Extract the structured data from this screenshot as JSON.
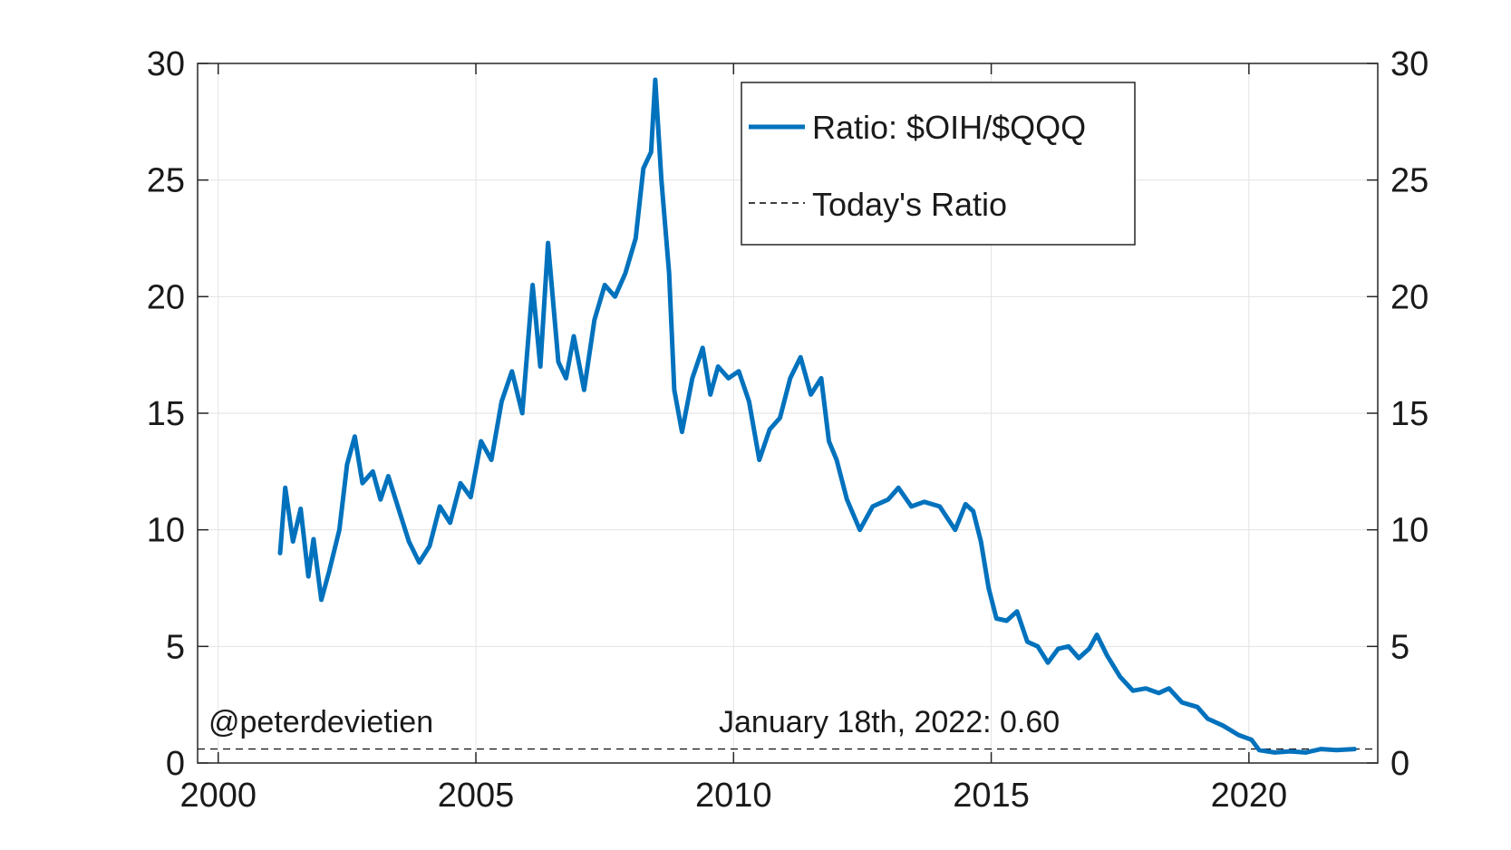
{
  "chart_data": {
    "type": "line",
    "title": "",
    "xlabel": "",
    "ylabel": "",
    "xlim": [
      1999.6,
      2022.5
    ],
    "ylim": [
      0,
      30
    ],
    "grid": true,
    "legend_position": "top-right",
    "x_ticks": [
      2000,
      2005,
      2010,
      2015,
      2020
    ],
    "x_tick_labels": [
      "2000",
      "2005",
      "2010",
      "2015",
      "2020"
    ],
    "y_ticks": [
      0,
      5,
      10,
      15,
      20,
      25,
      30
    ],
    "y_tick_labels": [
      "0",
      "5",
      "10",
      "15",
      "20",
      "25",
      "30"
    ],
    "series": [
      {
        "name": "Ratio: $OIH/$QQQ",
        "color": "#0072BD",
        "points": [
          [
            2001.2,
            9.0
          ],
          [
            2001.3,
            11.8
          ],
          [
            2001.45,
            9.5
          ],
          [
            2001.6,
            10.9
          ],
          [
            2001.75,
            8.0
          ],
          [
            2001.85,
            9.6
          ],
          [
            2002.0,
            7.0
          ],
          [
            2002.15,
            8.2
          ],
          [
            2002.35,
            10.0
          ],
          [
            2002.5,
            12.8
          ],
          [
            2002.65,
            14.0
          ],
          [
            2002.8,
            12.0
          ],
          [
            2003.0,
            12.5
          ],
          [
            2003.15,
            11.3
          ],
          [
            2003.3,
            12.3
          ],
          [
            2003.5,
            10.9
          ],
          [
            2003.7,
            9.5
          ],
          [
            2003.9,
            8.6
          ],
          [
            2004.1,
            9.3
          ],
          [
            2004.3,
            11.0
          ],
          [
            2004.5,
            10.3
          ],
          [
            2004.7,
            12.0
          ],
          [
            2004.9,
            11.4
          ],
          [
            2005.1,
            13.8
          ],
          [
            2005.3,
            13.0
          ],
          [
            2005.5,
            15.5
          ],
          [
            2005.7,
            16.8
          ],
          [
            2005.9,
            15.0
          ],
          [
            2006.1,
            20.5
          ],
          [
            2006.25,
            17.0
          ],
          [
            2006.4,
            22.3
          ],
          [
            2006.6,
            17.2
          ],
          [
            2006.75,
            16.5
          ],
          [
            2006.9,
            18.3
          ],
          [
            2007.1,
            16.0
          ],
          [
            2007.3,
            19.0
          ],
          [
            2007.5,
            20.5
          ],
          [
            2007.7,
            20.0
          ],
          [
            2007.9,
            21.0
          ],
          [
            2008.1,
            22.5
          ],
          [
            2008.25,
            25.5
          ],
          [
            2008.4,
            26.2
          ],
          [
            2008.48,
            29.3
          ],
          [
            2008.6,
            25.0
          ],
          [
            2008.75,
            21.0
          ],
          [
            2008.85,
            16.0
          ],
          [
            2009.0,
            14.2
          ],
          [
            2009.2,
            16.5
          ],
          [
            2009.4,
            17.8
          ],
          [
            2009.55,
            15.8
          ],
          [
            2009.7,
            17.0
          ],
          [
            2009.9,
            16.5
          ],
          [
            2010.1,
            16.8
          ],
          [
            2010.3,
            15.5
          ],
          [
            2010.5,
            13.0
          ],
          [
            2010.7,
            14.3
          ],
          [
            2010.9,
            14.8
          ],
          [
            2011.1,
            16.5
          ],
          [
            2011.3,
            17.4
          ],
          [
            2011.5,
            15.8
          ],
          [
            2011.7,
            16.5
          ],
          [
            2011.85,
            13.8
          ],
          [
            2012.0,
            13.0
          ],
          [
            2012.2,
            11.3
          ],
          [
            2012.45,
            10.0
          ],
          [
            2012.7,
            11.0
          ],
          [
            2013.0,
            11.3
          ],
          [
            2013.2,
            11.8
          ],
          [
            2013.45,
            11.0
          ],
          [
            2013.7,
            11.2
          ],
          [
            2014.0,
            11.0
          ],
          [
            2014.3,
            10.0
          ],
          [
            2014.5,
            11.1
          ],
          [
            2014.65,
            10.8
          ],
          [
            2014.8,
            9.5
          ],
          [
            2014.95,
            7.5
          ],
          [
            2015.1,
            6.2
          ],
          [
            2015.3,
            6.1
          ],
          [
            2015.5,
            6.5
          ],
          [
            2015.7,
            5.2
          ],
          [
            2015.9,
            5.0
          ],
          [
            2016.1,
            4.3
          ],
          [
            2016.3,
            4.9
          ],
          [
            2016.5,
            5.0
          ],
          [
            2016.7,
            4.5
          ],
          [
            2016.9,
            4.9
          ],
          [
            2017.05,
            5.5
          ],
          [
            2017.25,
            4.6
          ],
          [
            2017.5,
            3.7
          ],
          [
            2017.75,
            3.1
          ],
          [
            2018.0,
            3.2
          ],
          [
            2018.25,
            3.0
          ],
          [
            2018.45,
            3.2
          ],
          [
            2018.7,
            2.6
          ],
          [
            2019.0,
            2.4
          ],
          [
            2019.2,
            1.9
          ],
          [
            2019.5,
            1.6
          ],
          [
            2019.8,
            1.2
          ],
          [
            2020.05,
            1.0
          ],
          [
            2020.2,
            0.55
          ],
          [
            2020.5,
            0.45
          ],
          [
            2020.8,
            0.5
          ],
          [
            2021.1,
            0.45
          ],
          [
            2021.4,
            0.6
          ],
          [
            2021.7,
            0.55
          ],
          [
            2022.05,
            0.6
          ]
        ]
      },
      {
        "name": "Today's Ratio",
        "color": "#000000",
        "style": "dashed",
        "value": 0.6
      }
    ],
    "annotations": [
      {
        "text": "@peterdevietien"
      },
      {
        "text": "January 18th, 2022: 0.60"
      }
    ]
  }
}
